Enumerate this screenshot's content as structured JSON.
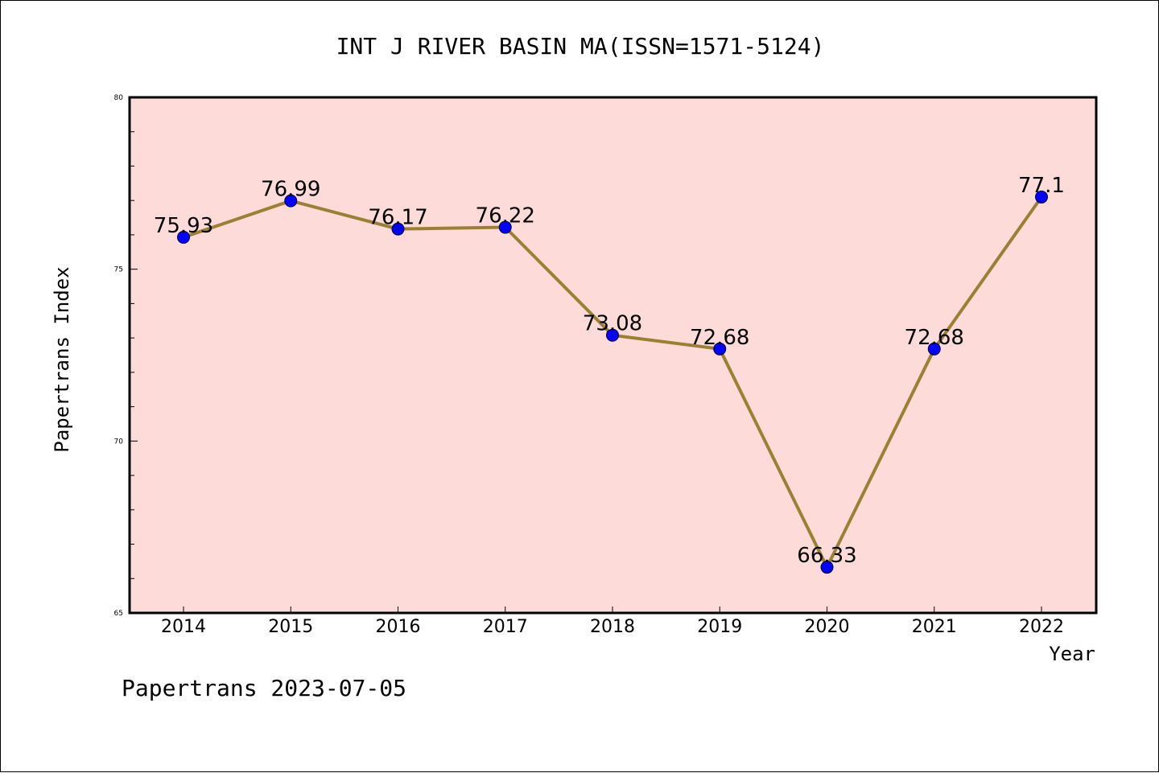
{
  "chart_data": {
    "type": "line",
    "title": "INT J RIVER BASIN MA(ISSN=1571-5124)",
    "xlabel": "Year",
    "ylabel": "Papertrans Index",
    "categories": [
      "2014",
      "2015",
      "2016",
      "2017",
      "2018",
      "2019",
      "2020",
      "2021",
      "2022"
    ],
    "values": [
      75.93,
      76.99,
      76.17,
      76.22,
      73.08,
      72.68,
      66.33,
      72.68,
      77.1
    ],
    "data_labels": [
      "75.93",
      "76.99",
      "76.17",
      "76.22",
      "73.08",
      "72.68",
      "66.33",
      "72.68",
      "77.1"
    ],
    "ylim": [
      65,
      80
    ],
    "y_ticks": [
      "80",
      "75",
      "70",
      "65"
    ],
    "y_tick_values": [
      80,
      75,
      70,
      65
    ],
    "grid": false,
    "colors": {
      "plot_background": "#fddbd8",
      "line": "#9b8034",
      "marker": "#0000ff"
    }
  },
  "footer": "Papertrans 2023-07-05"
}
